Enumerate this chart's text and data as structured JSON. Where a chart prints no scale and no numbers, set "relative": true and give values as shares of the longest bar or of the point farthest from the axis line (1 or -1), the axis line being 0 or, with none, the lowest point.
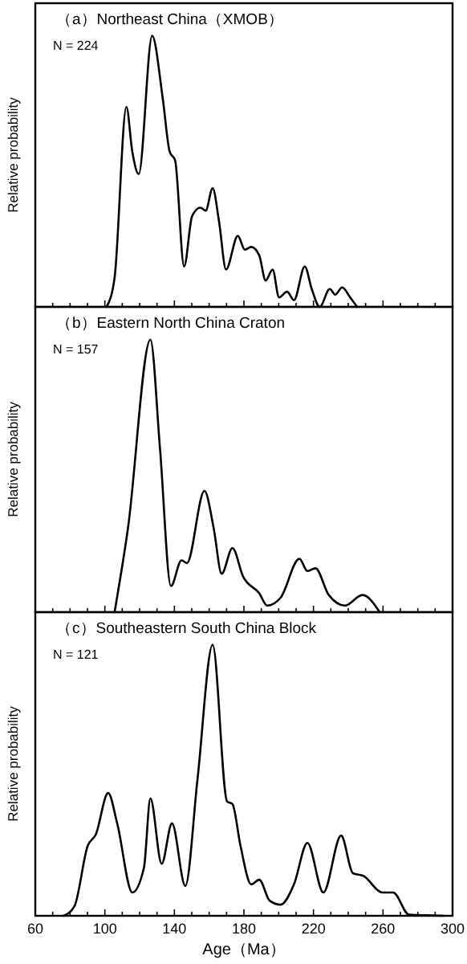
{
  "chart_data": [
    {
      "type": "line",
      "title": "（a）Northeast China（XMOB）",
      "ylabel": "Relative probability",
      "annotations": [
        "N = 224"
      ],
      "relative": true,
      "xlim": [
        60,
        300
      ],
      "tick_labels": false,
      "xticks": [
        60,
        {
          "value": 70,
          "label": null
        },
        {
          "value": 80,
          "label": null
        },
        {
          "value": 90,
          "label": null
        },
        100,
        {
          "value": 110,
          "label": null
        },
        {
          "value": 120,
          "label": null
        },
        {
          "value": 130,
          "label": null
        },
        140,
        {
          "value": 150,
          "label": null
        },
        {
          "value": 160,
          "label": null
        },
        {
          "value": 170,
          "label": null
        },
        180,
        {
          "value": 190,
          "label": null
        },
        {
          "value": 200,
          "label": null
        },
        {
          "value": 210,
          "label": null
        },
        220,
        {
          "value": 230,
          "label": null
        },
        {
          "value": 240,
          "label": null
        },
        {
          "value": 250,
          "label": null
        },
        260,
        {
          "value": 270,
          "label": null
        },
        {
          "value": 280,
          "label": null
        },
        {
          "value": 290,
          "label": null
        },
        300
      ],
      "series": [
        {
          "color": "#000000",
          "x": [
            101,
            105.6,
            112.4,
            115.8,
            119.5,
            127.2,
            133.3,
            137.3,
            140.4,
            145.6,
            150.2,
            154.9,
            158,
            162,
            165.7,
            169.7,
            176.5,
            180.5,
            184.2,
            188.8,
            192.5,
            196.5,
            200.2,
            204.8,
            208.8,
            215,
            219,
            223.6,
            229.4,
            232.5,
            236.5,
            241.1,
            245.1
          ],
          "values": [
            0,
            0.107,
            0.738,
            0.572,
            0.49,
            1,
            0.769,
            0.572,
            0.541,
            0.149,
            0.335,
            0.366,
            0.355,
            0.438,
            0.314,
            0.138,
            0.262,
            0.211,
            0.221,
            0.19,
            0.097,
            0.138,
            0.035,
            0.056,
            0.025,
            0.149,
            0.066,
            0,
            0.066,
            0.045,
            0.072,
            0.035,
            0
          ]
        }
      ]
    },
    {
      "type": "line",
      "title": "（b）Eastern North China Craton",
      "ylabel": "Relative probability",
      "annotations": [
        "N = 157"
      ],
      "relative": true,
      "xlim": [
        60,
        300
      ],
      "tick_labels": false,
      "xticks": [
        60,
        {
          "value": 70,
          "label": null
        },
        {
          "value": 80,
          "label": null
        },
        {
          "value": 90,
          "label": null
        },
        100,
        {
          "value": 110,
          "label": null
        },
        {
          "value": 120,
          "label": null
        },
        {
          "value": 130,
          "label": null
        },
        140,
        {
          "value": 150,
          "label": null
        },
        {
          "value": 160,
          "label": null
        },
        {
          "value": 170,
          "label": null
        },
        180,
        {
          "value": 190,
          "label": null
        },
        {
          "value": 200,
          "label": null
        },
        {
          "value": 210,
          "label": null
        },
        220,
        {
          "value": 230,
          "label": null
        },
        {
          "value": 240,
          "label": null
        },
        {
          "value": 250,
          "label": null
        },
        260,
        {
          "value": 270,
          "label": null
        },
        {
          "value": 280,
          "label": null
        },
        {
          "value": 290,
          "label": null
        },
        300
      ],
      "series": [
        {
          "color": "#000000",
          "x": [
            105.6,
            113.3,
            126.2,
            131.7,
            138,
            144.1,
            147.2,
            157.3,
            162.6,
            167.2,
            173.4,
            179.5,
            188.8,
            193.4,
            201.1,
            211.9,
            216.5,
            221.1,
            228.8,
            238.1,
            248.2,
            258.1
          ],
          "values": [
            0,
            0.308,
            1,
            0.602,
            0.096,
            0.19,
            0.18,
            0.445,
            0.308,
            0.141,
            0.235,
            0.131,
            0.069,
            0.024,
            0.053,
            0.196,
            0.151,
            0.161,
            0.063,
            0.024,
            0.063,
            0
          ]
        }
      ]
    },
    {
      "type": "line",
      "title": "（c）Southeastern South China Block",
      "ylabel": "Relative probability",
      "xlabel": "Age（Ma）",
      "annotations": [
        "N = 121"
      ],
      "relative": true,
      "xlim": [
        60,
        300
      ],
      "tick_labels": "x",
      "xticks": [
        60,
        {
          "value": 70,
          "label": null
        },
        {
          "value": 80,
          "label": null
        },
        {
          "value": 90,
          "label": null
        },
        100,
        {
          "value": 110,
          "label": null
        },
        {
          "value": 120,
          "label": null
        },
        {
          "value": 130,
          "label": null
        },
        140,
        {
          "value": 150,
          "label": null
        },
        {
          "value": 160,
          "label": null
        },
        {
          "value": 170,
          "label": null
        },
        180,
        {
          "value": 190,
          "label": null
        },
        {
          "value": 200,
          "label": null
        },
        {
          "value": 210,
          "label": null
        },
        220,
        {
          "value": 230,
          "label": null
        },
        {
          "value": 240,
          "label": null
        },
        {
          "value": 250,
          "label": null
        },
        260,
        {
          "value": 270,
          "label": null
        },
        {
          "value": 280,
          "label": null
        },
        {
          "value": 290,
          "label": null
        },
        300
      ],
      "series": [
        {
          "color": "#000000",
          "x": [
            76.3,
            82.5,
            90.2,
            94.8,
            101.9,
            107.1,
            115.8,
            122.5,
            126.2,
            132.7,
            138.6,
            146.3,
            153.3,
            162,
            170.3,
            173.4,
            178,
            184.2,
            188.8,
            194.9,
            201.1,
            208.8,
            216.5,
            225.7,
            235.9,
            242.7,
            248.8,
            259.6,
            265.8,
            275,
            295
          ],
          "values": [
            0,
            0.035,
            0.259,
            0.3,
            0.453,
            0.341,
            0.086,
            0.178,
            0.433,
            0.192,
            0.341,
            0.11,
            0.504,
            1,
            0.422,
            0.412,
            0.259,
            0.116,
            0.133,
            0.055,
            0.041,
            0.116,
            0.269,
            0.086,
            0.296,
            0.157,
            0.147,
            0.086,
            0.086,
            0.004,
            0
          ]
        }
      ]
    }
  ]
}
